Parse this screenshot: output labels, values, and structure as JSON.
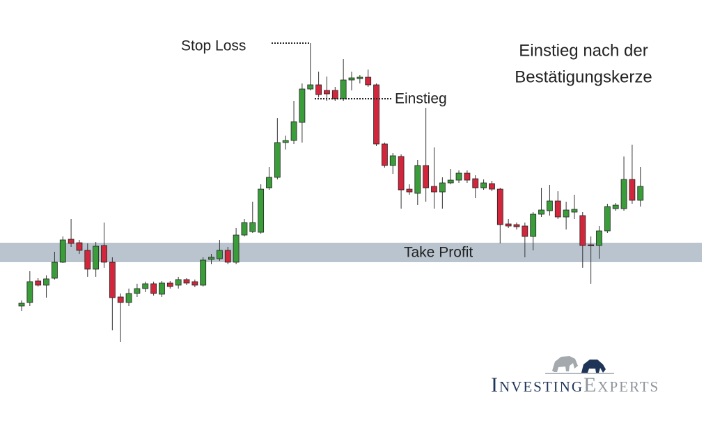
{
  "chart_data": {
    "type": "candlestick",
    "title": [
      "Einstieg nach der",
      "Bestätigungskerze"
    ],
    "up_color": "#3a9d3a",
    "down_color": "#d1263b",
    "ylim": [
      0,
      614
    ],
    "open": [
      174,
      179,
      210,
      204,
      214,
      237,
      270,
      265,
      254,
      227,
      261,
      237,
      187,
      179,
      192,
      199,
      206,
      191,
      207,
      204,
      212,
      209,
      204,
      241,
      242,
      254,
      237,
      276,
      281,
      280,
      344,
      359,
      409,
      412,
      438,
      486,
      492,
      484,
      484,
      472,
      499,
      501,
      503,
      492,
      407,
      376,
      389,
      342,
      336,
      376,
      346,
      338,
      351,
      355,
      365,
      357,
      344,
      350,
      342,
      292,
      291,
      289,
      274,
      306,
      311,
      325,
      302,
      309,
      304,
      262,
      261,
      282,
      314,
      314,
      356,
      326
    ],
    "high": [
      182,
      224,
      214,
      218,
      252,
      274,
      299,
      269,
      264,
      266,
      294,
      244,
      192,
      199,
      206,
      209,
      209,
      210,
      210,
      216,
      214,
      212,
      244,
      249,
      269,
      259,
      286,
      299,
      324,
      349,
      374,
      444,
      419,
      469,
      494,
      552,
      511,
      504,
      489,
      529,
      511,
      506,
      514,
      494,
      409,
      394,
      392,
      349,
      384,
      459,
      402,
      359,
      371,
      369,
      369,
      362,
      356,
      354,
      344,
      299,
      294,
      294,
      309,
      344,
      348,
      339,
      324,
      334,
      309,
      274,
      289,
      321,
      322,
      389,
      406,
      374
    ],
    "low": [
      167,
      174,
      202,
      186,
      212,
      236,
      259,
      249,
      216,
      216,
      229,
      139,
      122,
      174,
      187,
      194,
      189,
      187,
      199,
      199,
      204,
      201,
      202,
      234,
      239,
      234,
      234,
      274,
      279,
      278,
      341,
      356,
      399,
      407,
      409,
      484,
      474,
      469,
      469,
      469,
      484,
      494,
      489,
      404,
      373,
      364,
      314,
      334,
      319,
      324,
      314,
      314,
      349,
      351,
      351,
      329,
      341,
      339,
      264,
      286,
      284,
      244,
      254,
      302,
      304,
      299,
      284,
      299,
      229,
      206,
      242,
      279,
      311,
      311,
      321,
      317
    ],
    "close": [
      178,
      209,
      204,
      213,
      237,
      269,
      264,
      254,
      227,
      260,
      237,
      186,
      179,
      192,
      199,
      206,
      192,
      207,
      202,
      212,
      207,
      204,
      240,
      244,
      254,
      237,
      276,
      294,
      294,
      342,
      359,
      409,
      412,
      439,
      486,
      492,
      478,
      479,
      472,
      499,
      502,
      503,
      492,
      407,
      376,
      390,
      341,
      338,
      376,
      344,
      338,
      351,
      355,
      365,
      355,
      344,
      351,
      342,
      291,
      289,
      288,
      274,
      306,
      312,
      325,
      302,
      312,
      313,
      261,
      261,
      282,
      317,
      319,
      356,
      326,
      346
    ],
    "annotations": [
      {
        "text": "Stop Loss",
        "value": 552
      },
      {
        "text": "Einstieg",
        "value": 472
      }
    ],
    "zone": {
      "label": "Take Profit",
      "range": [
        237,
        265
      ],
      "color": "#b9c4cf"
    }
  },
  "brand": {
    "first": "Investing",
    "second": "Experts"
  }
}
